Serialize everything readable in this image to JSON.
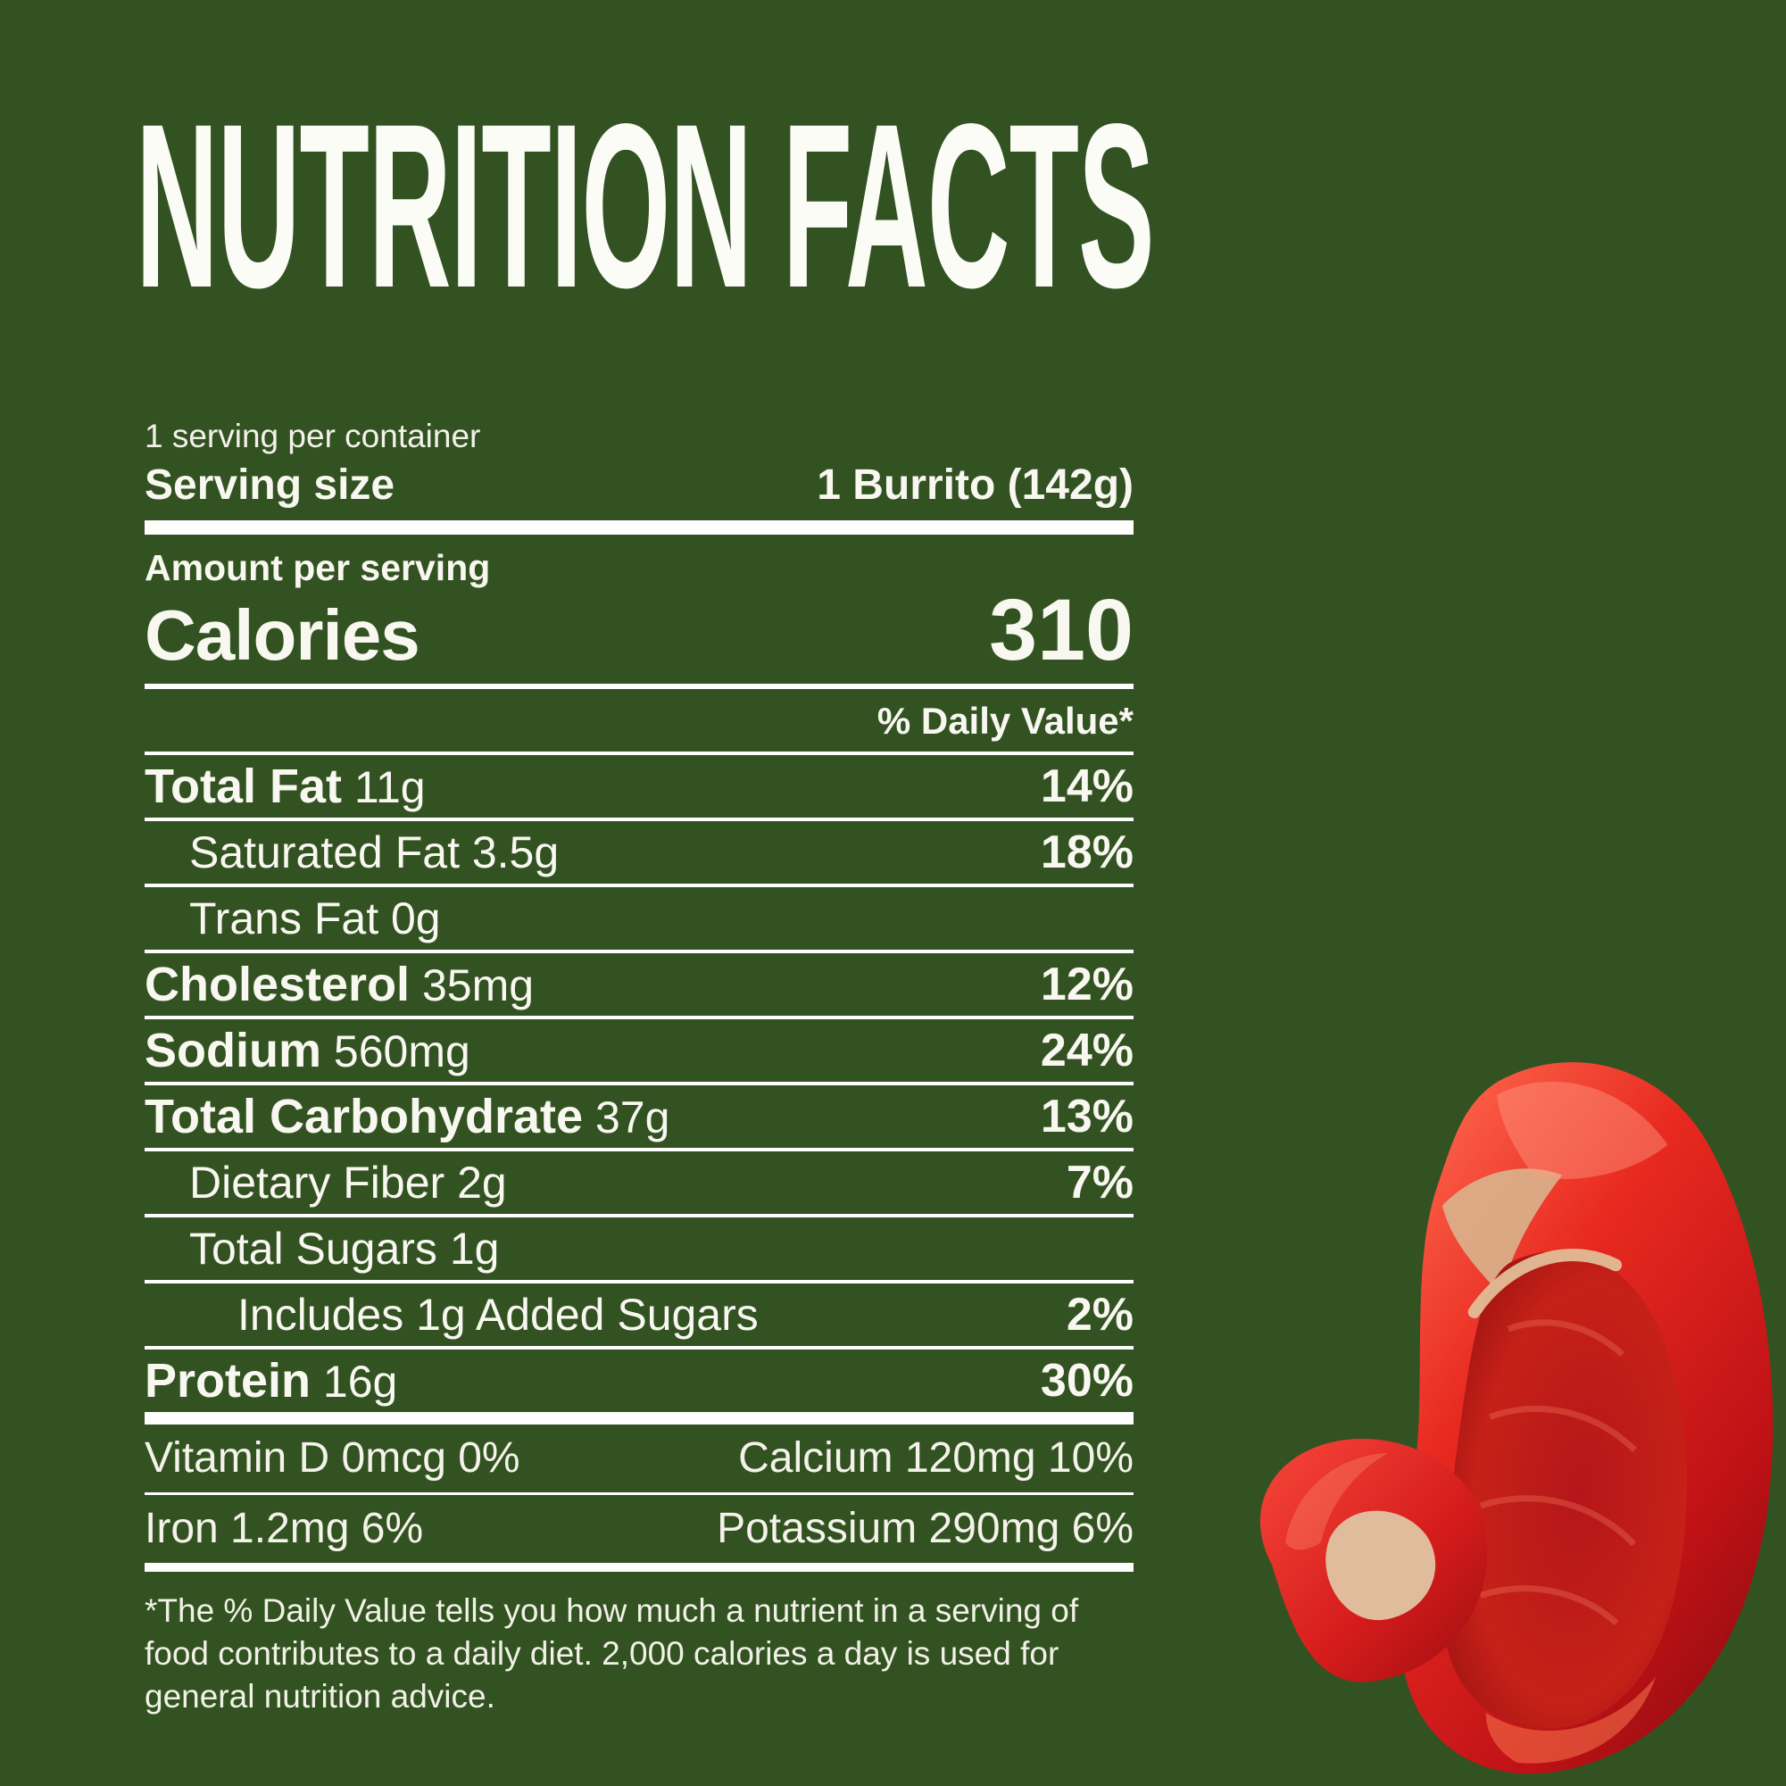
{
  "colors": {
    "background": "#335222",
    "text": "#F8F7F0",
    "rule": "#FFFFFF",
    "pepper_red": "#C8201D"
  },
  "title": "NUTRITION FACTS",
  "label": {
    "servings_per_container": "1 serving per container",
    "serving_size_label": "Serving size",
    "serving_size_value": "1 Burrito (142g)",
    "amount_per_serving_label": "Amount per serving",
    "calories_label": "Calories",
    "calories_value": "310",
    "daily_value_header": "% Daily Value*",
    "nutrients": [
      {
        "name": "Total Fat",
        "amount": "11g",
        "dv": "14%",
        "style": "bold",
        "indent": 0
      },
      {
        "name": "Saturated Fat",
        "amount": "3.5g",
        "dv": "18%",
        "style": "light",
        "indent": 1
      },
      {
        "name": "Trans Fat",
        "amount": "0g",
        "dv": "",
        "style": "light",
        "indent": 1
      },
      {
        "name": "Cholesterol",
        "amount": "35mg",
        "dv": "12%",
        "style": "bold",
        "indent": 0
      },
      {
        "name": "Sodium",
        "amount": "560mg",
        "dv": "24%",
        "style": "bold",
        "indent": 0
      },
      {
        "name": "Total Carbohydrate",
        "amount": "37g",
        "dv": "13%",
        "style": "bold",
        "indent": 0
      },
      {
        "name": "Dietary Fiber",
        "amount": "2g",
        "dv": "7%",
        "style": "light",
        "indent": 1
      },
      {
        "name": "Total Sugars",
        "amount": "1g",
        "dv": "",
        "style": "light",
        "indent": 1
      },
      {
        "name": "Includes 1g Added Sugars",
        "amount": "",
        "dv": "2%",
        "style": "light",
        "indent": 2
      },
      {
        "name": "Protein",
        "amount": "16g",
        "dv": "30%",
        "style": "bold",
        "indent": 0
      }
    ],
    "micronutrients": [
      {
        "left": "Vitamin D 0mcg 0%",
        "right": "Calcium 120mg 10%"
      },
      {
        "left": "Iron 1.2mg 6%",
        "right": "Potassium 290mg 6%"
      }
    ],
    "footnote": "*The % Daily Value tells you how much a nutrient in a serving of food contributes to a daily diet. 2,000 calories a day is used for general nutrition advice."
  },
  "image": {
    "description": "red bell pepper slices"
  }
}
